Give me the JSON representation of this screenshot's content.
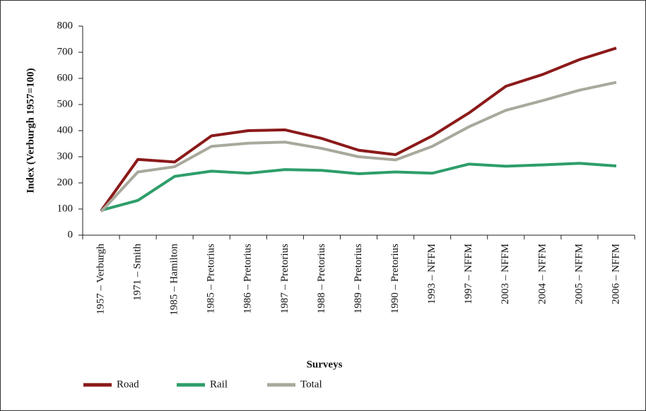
{
  "chart_data": {
    "type": "line",
    "x_label": "Surveys",
    "y_label": "Index (Verburgh 1957=100)",
    "categories": [
      "1957 – Verburgh",
      "1971 – Smith",
      "1985 – Hamilton",
      "1985 – Pretorius",
      "1986 – Pretorius",
      "1987 – Pretorius",
      "1988 – Pretorius",
      "1989 – Pretorius",
      "1990 – Pretorius",
      "1993 – NFFM",
      "1997 – NFFM",
      "2003 – NFFM",
      "2004 – NFFM",
      "2005 – NFFM",
      "2006 – NFFM"
    ],
    "series": [
      {
        "name": "Road",
        "color": "#8b1a1a",
        "values": [
          93,
          290,
          280,
          380,
          400,
          403,
          370,
          325,
          308,
          380,
          468,
          570,
          615,
          672,
          716
        ]
      },
      {
        "name": "Rail",
        "color": "#2e9e6a",
        "values": [
          95,
          133,
          225,
          245,
          237,
          251,
          248,
          235,
          242,
          237,
          272,
          264,
          269,
          275,
          265
        ]
      },
      {
        "name": "Total",
        "color": "#a8a89c",
        "values": [
          90,
          242,
          262,
          340,
          352,
          356,
          332,
          300,
          288,
          340,
          415,
          478,
          515,
          555,
          585
        ]
      }
    ],
    "ylim": [
      0,
      800
    ],
    "yticks": [
      0,
      100,
      200,
      300,
      400,
      500,
      600,
      700,
      800
    ],
    "grid": false,
    "legend": "bottom"
  }
}
